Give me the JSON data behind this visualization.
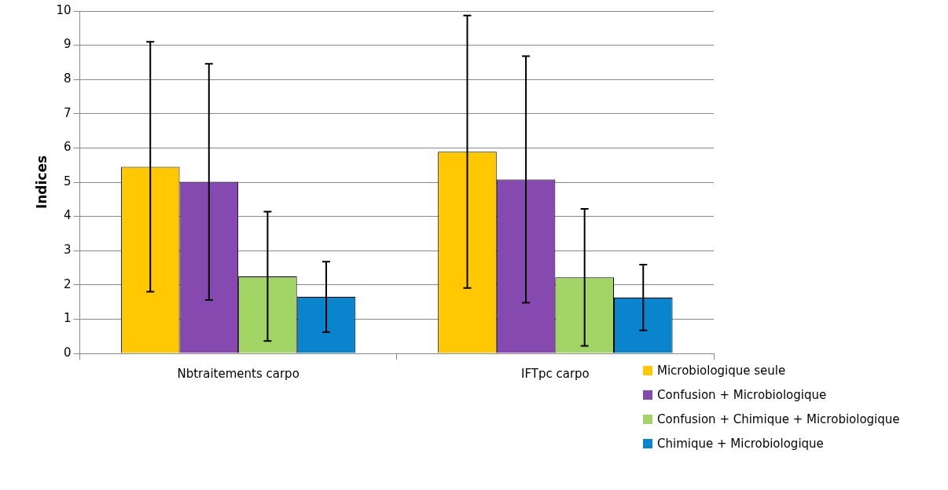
{
  "chart_data": {
    "type": "bar",
    "ylabel": "Indices",
    "categories": [
      "Nbtraitements carpo",
      "IFTpc carpo"
    ],
    "series": [
      {
        "name": "Microbiologique seule",
        "color": "#ffc800",
        "values": [
          5.45,
          5.89
        ],
        "errors": [
          3.65,
          3.98
        ]
      },
      {
        "name": "Confusion + Microbiologique",
        "color": "#8549b0",
        "values": [
          5.01,
          5.08
        ],
        "errors": [
          3.45,
          3.6
        ]
      },
      {
        "name": "Confusion + Chimique + Microbiologique",
        "color": "#a2d565",
        "values": [
          2.25,
          2.22
        ],
        "errors": [
          1.89,
          2.0
        ]
      },
      {
        "name": "Chimique + Microbiologique",
        "color": "#0a84cc",
        "values": [
          1.65,
          1.63
        ],
        "errors": [
          1.03,
          0.96
        ]
      }
    ],
    "ylim": [
      0,
      10
    ],
    "yticks": [
      0,
      1,
      2,
      3,
      4,
      5,
      6,
      7,
      8,
      9,
      10
    ],
    "grid": "y",
    "legend": "bottom right"
  }
}
